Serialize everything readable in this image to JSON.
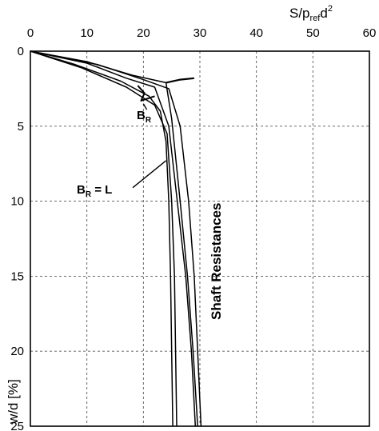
{
  "chart_data": {
    "type": "line",
    "title": "",
    "xlabel": "S/p",
    "xlabel_sub": "ref",
    "xlabel_tail": "d",
    "xlabel_sup": "2",
    "ylabel": "w/d [%]",
    "xlim": [
      0,
      60
    ],
    "ylim": [
      0,
      25
    ],
    "y_inverted": true,
    "x_axis_position": "top",
    "grid": true,
    "x_ticks": [
      0,
      10,
      20,
      30,
      40,
      50,
      60
    ],
    "y_ticks": [
      0,
      5,
      10,
      15,
      20,
      25
    ],
    "series": [
      {
        "values": [
          [
            0,
            0
          ],
          [
            10,
            0.7
          ],
          [
            18,
            1.6
          ],
          [
            24,
            2.1
          ],
          [
            25,
            4.5
          ],
          [
            26.5,
            10
          ],
          [
            27.8,
            15
          ],
          [
            28.8,
            20
          ],
          [
            29.6,
            25
          ]
        ]
      },
      {
        "values": [
          [
            0,
            0
          ],
          [
            10,
            0.8
          ],
          [
            17,
            1.8
          ],
          [
            22,
            2.4
          ],
          [
            24.5,
            5
          ],
          [
            26,
            10
          ],
          [
            27.5,
            15
          ],
          [
            28.5,
            20
          ],
          [
            29.2,
            25
          ]
        ]
      },
      {
        "values": [
          [
            0,
            0
          ],
          [
            12,
            0.9
          ],
          [
            20,
            1.9
          ],
          [
            24.5,
            2.5
          ],
          [
            26.5,
            5
          ],
          [
            28,
            10
          ],
          [
            29,
            15
          ],
          [
            29.6,
            20
          ],
          [
            30.2,
            25
          ]
        ]
      },
      {
        "values": [
          [
            0,
            0
          ],
          [
            8,
            0.9
          ],
          [
            16,
            2.0
          ],
          [
            21,
            3.0
          ],
          [
            23,
            4.0
          ],
          [
            24,
            6
          ],
          [
            24.5,
            10
          ],
          [
            24.8,
            15
          ],
          [
            25.0,
            20
          ],
          [
            25.2,
            25
          ]
        ]
      },
      {
        "values": [
          [
            0,
            0
          ],
          [
            9,
            1.1
          ],
          [
            17,
            2.4
          ],
          [
            22,
            3.6
          ],
          [
            24.2,
            5.5
          ],
          [
            25,
            10
          ],
          [
            25.5,
            15
          ],
          [
            25.7,
            20
          ],
          [
            25.9,
            25
          ]
        ]
      }
    ],
    "kink": [
      [
        19,
        2.3
      ],
      [
        20.2,
        2.8
      ],
      [
        19.6,
        3.3
      ],
      [
        22,
        3.0
      ]
    ],
    "annotations": {
      "br": {
        "main": "B",
        "sub": "R"
      },
      "br_eq_l": {
        "main": "B",
        "sub": "R",
        "tail": " = L"
      },
      "shaft": "Shaft Resistances"
    }
  }
}
